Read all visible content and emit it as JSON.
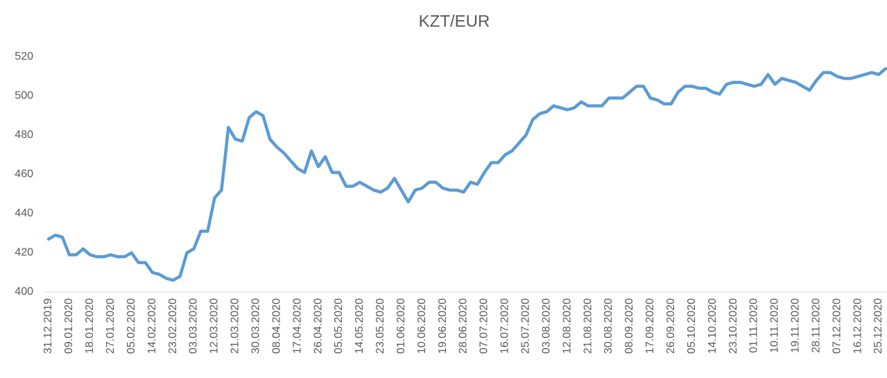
{
  "chart_data": {
    "type": "line",
    "title": "KZT/EUR",
    "categories": [
      "31.12.2019",
      null,
      null,
      "09.01.2020",
      null,
      null,
      "18.01.2020",
      null,
      null,
      "27.01.2020",
      null,
      null,
      "05.02.2020",
      null,
      null,
      "14.02.2020",
      null,
      null,
      "23.02.2020",
      null,
      null,
      "03.03.2020",
      null,
      null,
      "12.03.2020",
      null,
      null,
      "21.03.2020",
      null,
      null,
      "30.03.2020",
      null,
      null,
      "08.04.2020",
      null,
      null,
      "17.04.2020",
      null,
      null,
      "26.04.2020",
      null,
      null,
      "05.05.2020",
      null,
      null,
      "14.05.2020",
      null,
      null,
      "23.05.2020",
      null,
      null,
      "01.06.2020",
      null,
      null,
      "10.06.2020",
      null,
      null,
      "19.06.2020",
      null,
      null,
      "28.06.2020",
      null,
      null,
      "07.07.2020",
      null,
      null,
      "16.07.2020",
      null,
      null,
      "25.07.2020",
      null,
      null,
      "03.08.2020",
      null,
      null,
      "12.08.2020",
      null,
      null,
      "21.08.2020",
      null,
      null,
      "30.08.2020",
      null,
      null,
      "08.09.2020",
      null,
      null,
      "17.09.2020",
      null,
      null,
      "26.09.2020",
      null,
      null,
      "05.10.2020",
      null,
      null,
      "14.10.2020",
      null,
      null,
      "23.10.2020",
      null,
      null,
      "01.11.2020",
      null,
      null,
      "10.11.2020",
      null,
      null,
      "19.11.2020",
      null,
      null,
      "28.11.2020",
      null,
      null,
      "07.12.2020",
      null,
      null,
      "16.12.2020",
      null,
      null,
      "25.12.2020",
      null
    ],
    "values": [
      427,
      429,
      428,
      419,
      419,
      422,
      419,
      418,
      418,
      419,
      418,
      418,
      420,
      415,
      415,
      410,
      409,
      407,
      406,
      408,
      420,
      422,
      431,
      431,
      448,
      452,
      484,
      478,
      477,
      489,
      492,
      490,
      478,
      474,
      471,
      467,
      463,
      461,
      472,
      464,
      469,
      461,
      461,
      454,
      454,
      456,
      454,
      452,
      451,
      453,
      458,
      452,
      446,
      452,
      453,
      456,
      456,
      453,
      452,
      452,
      451,
      456,
      455,
      461,
      466,
      466,
      470,
      472,
      476,
      480,
      488,
      491,
      492,
      495,
      494,
      493,
      494,
      497,
      495,
      495,
      495,
      499,
      499,
      499,
      502,
      505,
      505,
      499,
      498,
      496,
      496,
      502,
      505,
      505,
      504,
      504,
      502,
      501,
      506,
      507,
      507,
      506,
      505,
      506,
      511,
      506,
      509,
      508,
      507,
      505,
      503,
      508,
      512,
      512,
      510,
      509,
      509,
      510,
      511,
      512,
      511,
      514
    ],
    "color": "#5b9bd5",
    "ylim": [
      400,
      520
    ],
    "yticks": [
      400,
      420,
      440,
      460,
      480,
      500,
      520
    ],
    "grid": false
  }
}
